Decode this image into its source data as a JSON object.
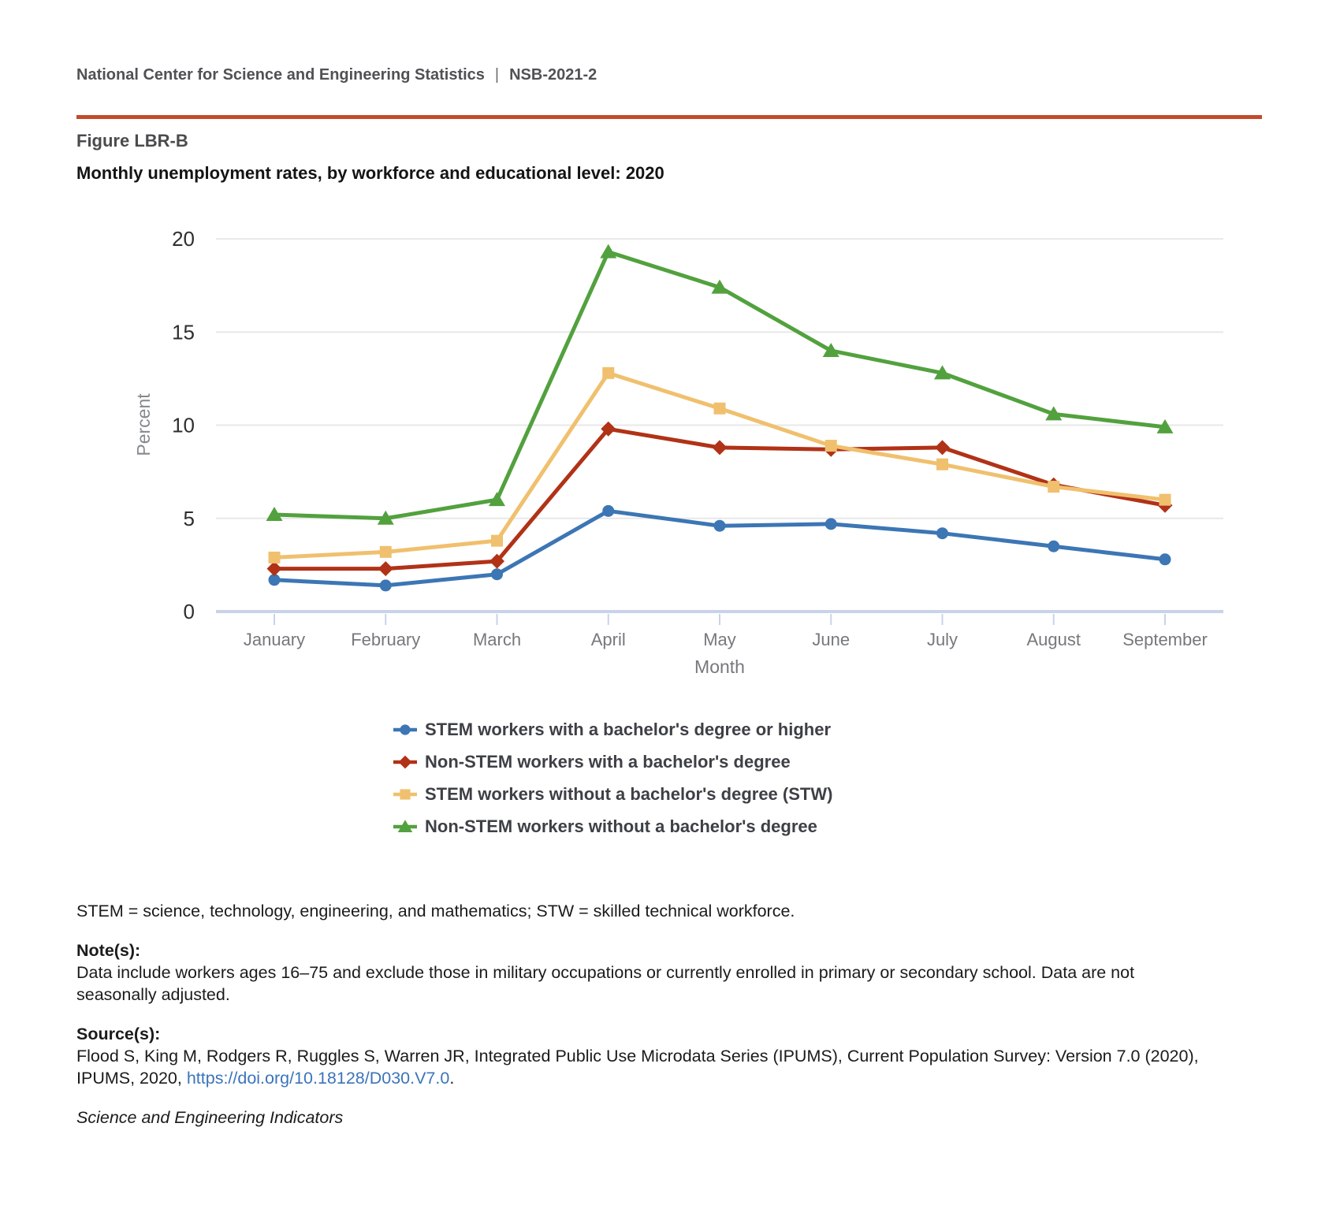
{
  "header": {
    "org": "National Center for Science and Engineering Statistics",
    "separator": "|",
    "report_id": "NSB-2021-2"
  },
  "figure": {
    "label": "Figure LBR-B"
  },
  "chart_data": {
    "type": "line",
    "title": "Monthly unemployment rates, by workforce and educational level: 2020",
    "xlabel": "Month",
    "ylabel": "Percent",
    "ylim": [
      0,
      20
    ],
    "yticks": [
      0,
      5,
      10,
      15,
      20
    ],
    "grid": true,
    "legend_position": "bottom",
    "categories": [
      "January",
      "February",
      "March",
      "April",
      "May",
      "June",
      "July",
      "August",
      "September"
    ],
    "series": [
      {
        "name": "STEM workers with a bachelor's degree or higher",
        "marker": "circle",
        "color": "#3c76b4",
        "values": [
          1.7,
          1.4,
          2.0,
          5.4,
          4.6,
          4.7,
          4.2,
          3.5,
          2.8
        ]
      },
      {
        "name": "Non-STEM workers with a bachelor's degree",
        "marker": "diamond",
        "color": "#b13217",
        "values": [
          2.3,
          2.3,
          2.7,
          9.8,
          8.8,
          8.7,
          8.8,
          6.8,
          5.7
        ]
      },
      {
        "name": "STEM workers without a bachelor's degree (STW)",
        "marker": "square",
        "color": "#f0c06e",
        "values": [
          2.9,
          3.2,
          3.8,
          12.8,
          10.9,
          8.9,
          7.9,
          6.7,
          6.0
        ]
      },
      {
        "name": "Non-STEM workers without a bachelor's degree",
        "marker": "triangle",
        "color": "#52a13e",
        "values": [
          5.2,
          5.0,
          6.0,
          19.3,
          17.4,
          14.0,
          12.8,
          10.6,
          9.9
        ]
      }
    ]
  },
  "footnotes": {
    "abbreviation": "STEM = science, technology, engineering, and mathematics; STW = skilled technical workforce.",
    "notes_label": "Note(s):",
    "notes_line1": "Data include workers ages 16–75 and exclude those in military occupations or currently enrolled in primary or secondary school. Data are not",
    "notes_line2": "seasonally adjusted.",
    "sources_label": "Source(s):",
    "sources_line1": "Flood S, King M, Rodgers R, Ruggles S, Warren JR, Integrated Public Use Microdata Series (IPUMS), Current Population Survey: Version 7.0 (2020),",
    "sources_line2_prefix": "IPUMS, 2020, ",
    "sources_link": "https://doi.org/10.18128/D030.V7.0",
    "sources_line2_suffix": ".",
    "attribution": "Science and Engineering Indicators"
  },
  "colors": {
    "divider": "#c24b2b",
    "link": "#3c74b9",
    "gridline": "#e8e8e8",
    "axis_line": "#c8d3ea",
    "ytick_label": "#2e2e2e",
    "xtick_label": "#76787c",
    "axis_title": "#85888c",
    "legend_text": "#3d4045"
  }
}
